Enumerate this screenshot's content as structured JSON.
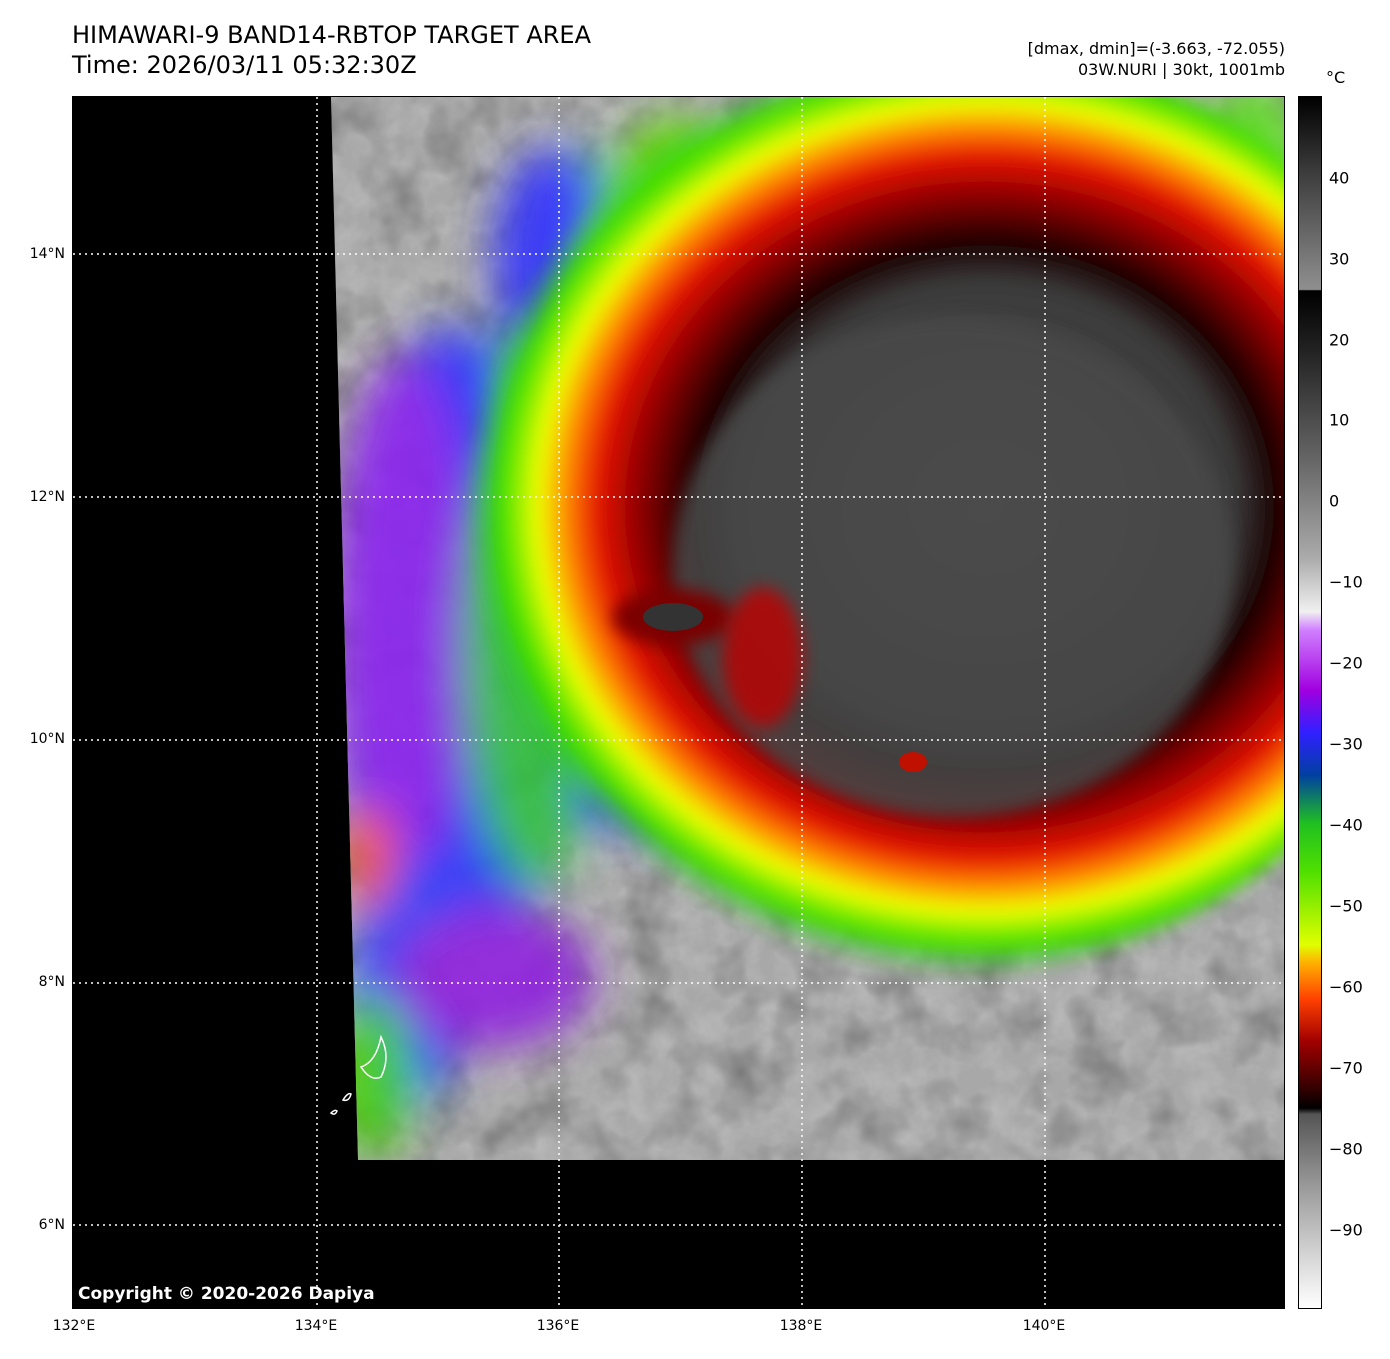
{
  "header": {
    "title_line1": "HIMAWARI-9 BAND14-RBTOP TARGET AREA",
    "title_line2": "Time: 2026/03/11 05:32:30Z",
    "dmax_dmin": "[dmax, dmin]=(-3.663, -72.055)",
    "storm_info": "03W.NURI | 30kt, 1001mb"
  },
  "map": {
    "lat_labels": [
      "14°N",
      "12°N",
      "10°N",
      "8°N",
      "6°N"
    ],
    "lon_labels": [
      "132°E",
      "134°E",
      "136°E",
      "138°E",
      "140°E"
    ],
    "copyright": "Copyright © 2020-2026 Dapiya"
  },
  "colorbar": {
    "unit": "°C",
    "ticks": [
      "40",
      "30",
      "20",
      "10",
      "0",
      "−10",
      "−20",
      "−30",
      "−40",
      "−50",
      "−60",
      "−70",
      "−80",
      "−90"
    ]
  }
}
